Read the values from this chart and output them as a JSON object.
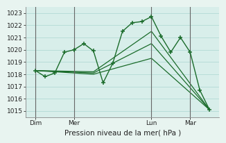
{
  "background_color": "#e8f4f0",
  "plot_bg_color": "#d8eeea",
  "grid_color": "#b8ddd8",
  "line_color": "#1a6b2a",
  "title": "Pression niveau de la mer( hPa )",
  "ylim": [
    1014.5,
    1023.5
  ],
  "yticks": [
    1015,
    1016,
    1017,
    1018,
    1019,
    1020,
    1021,
    1022,
    1023
  ],
  "day_labels": [
    "Dim",
    "Mer",
    "Lun",
    "Mar"
  ],
  "day_positions": [
    0,
    16,
    48,
    64
  ],
  "xlim": [
    -4,
    76
  ],
  "series_main": {
    "x": [
      0,
      4,
      8,
      12,
      16,
      20,
      24,
      28,
      32,
      36,
      40,
      44,
      48,
      52,
      56,
      60,
      64,
      68,
      72
    ],
    "y": [
      1018.3,
      1017.8,
      1018.1,
      1019.8,
      1020.0,
      1020.5,
      1019.9,
      1017.3,
      1018.9,
      1021.5,
      1022.2,
      1022.3,
      1022.7,
      1021.1,
      1019.8,
      1021.0,
      1019.8,
      1016.7,
      1015.1
    ]
  },
  "series_trends": [
    {
      "x": [
        0,
        24,
        48,
        72
      ],
      "y": [
        1018.3,
        1018.0,
        1019.3,
        1015.1
      ]
    },
    {
      "x": [
        0,
        24,
        48,
        72
      ],
      "y": [
        1018.3,
        1018.1,
        1020.5,
        1015.1
      ]
    },
    {
      "x": [
        0,
        24,
        48,
        72
      ],
      "y": [
        1018.3,
        1018.2,
        1021.5,
        1015.1
      ]
    }
  ]
}
